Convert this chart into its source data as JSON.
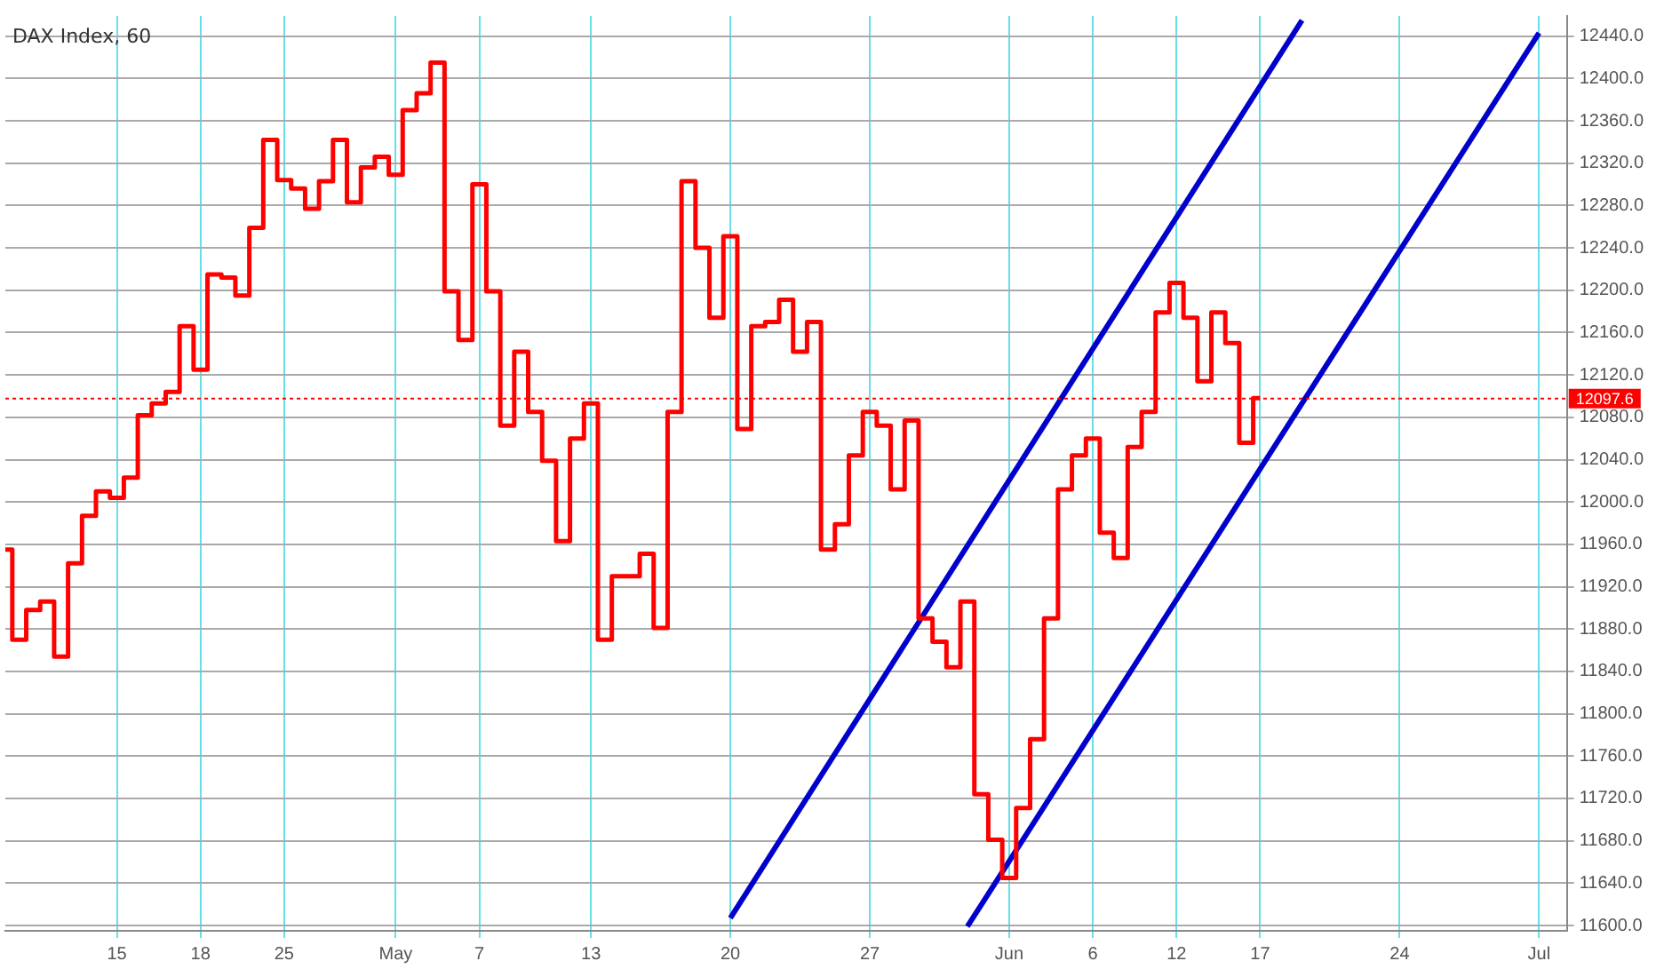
{
  "chart_data": {
    "type": "step",
    "title": "DAX Index, 60",
    "categories": [
      null,
      null,
      null,
      null,
      null,
      null,
      null,
      null,
      "15",
      null,
      null,
      null,
      null,
      null,
      "18",
      null,
      null,
      null,
      null,
      null,
      "25",
      null,
      null,
      null,
      null,
      null,
      null,
      null,
      "May",
      null,
      null,
      null,
      null,
      null,
      "7",
      null,
      null,
      null,
      null,
      null,
      null,
      null,
      "13",
      null,
      null,
      null,
      null,
      null,
      null,
      null,
      null,
      null,
      "20",
      null,
      null,
      null,
      null,
      null,
      null,
      null,
      null,
      null,
      "27",
      null,
      null,
      null,
      null,
      null,
      null,
      null,
      null,
      null,
      "Jun",
      null,
      null,
      null,
      null,
      null,
      "6",
      null,
      null,
      null,
      null,
      null,
      "12",
      null,
      null,
      null,
      null,
      null,
      "17",
      null,
      null,
      null,
      null,
      null,
      null,
      null,
      null,
      null,
      "24",
      null,
      null,
      null,
      null,
      null,
      null,
      null,
      null,
      null,
      "Jul",
      null,
      null
    ],
    "ylim": [
      11595,
      12459
    ],
    "yticks": [
      {
        "value": 11600,
        "label": "11600.0"
      },
      {
        "value": 11640,
        "label": "11640.0"
      },
      {
        "value": 11680,
        "label": "11680.0"
      },
      {
        "value": 11720,
        "label": "11720.0"
      },
      {
        "value": 11760,
        "label": "11760.0"
      },
      {
        "value": 11800,
        "label": "11800.0"
      },
      {
        "value": 11840,
        "label": "11840.0"
      },
      {
        "value": 11880,
        "label": "11880.0"
      },
      {
        "value": 11920,
        "label": "11920.0"
      },
      {
        "value": 11960,
        "label": "11960.0"
      },
      {
        "value": 12000,
        "label": "12000.0"
      },
      {
        "value": 12040,
        "label": "12040.0"
      },
      {
        "value": 12080,
        "label": "12080.0"
      },
      {
        "value": 12120,
        "label": "12120.0"
      },
      {
        "value": 12160,
        "label": "12160.0"
      },
      {
        "value": 12200,
        "label": "12200.0"
      },
      {
        "value": 12240,
        "label": "12240.0"
      },
      {
        "value": 12280,
        "label": "12280.0"
      },
      {
        "value": 12320,
        "label": "12320.0"
      },
      {
        "value": 12360,
        "label": "12360.0"
      },
      {
        "value": 12400,
        "label": "12400.0"
      },
      {
        "value": 12440,
        "label": "12440.0"
      }
    ],
    "grid": true,
    "legend": false,
    "ref_lines": [
      {
        "axis": "y",
        "value": 12097.6,
        "label": "12097.6",
        "color": "#ff0000",
        "line_style": "dotted"
      }
    ],
    "series": [
      {
        "color": "#ff0000",
        "values": [
          11955,
          11870,
          11898,
          11906,
          11854,
          11942,
          11987,
          12010,
          12004,
          12023,
          12082,
          12093,
          12104,
          12166,
          12125,
          12215,
          12212,
          12195,
          12259,
          12342,
          12304,
          12296,
          12277,
          12303,
          12342,
          12283,
          12316,
          12326,
          12309,
          12370,
          12386,
          12415,
          12199,
          12153,
          12300,
          12199,
          12072,
          12142,
          12085,
          12039,
          11963,
          12060,
          12093,
          11870,
          11930,
          11930,
          11951,
          11881,
          12085,
          12303,
          12240,
          12174,
          12251,
          12069,
          12166,
          12170,
          12191,
          12142,
          12170,
          11955,
          11979,
          12044,
          12085,
          12072,
          12012,
          12077,
          11890,
          11868,
          11844,
          11906,
          11724,
          11681,
          11645,
          11711,
          11776,
          11890,
          12012,
          12044,
          12060,
          11971,
          11947,
          12052,
          12085,
          12179,
          12207,
          12174,
          12114,
          12179,
          12150,
          12056,
          12098,
          null,
          null,
          null,
          null,
          null,
          null,
          null,
          null,
          null,
          null,
          null,
          null,
          null,
          null,
          null,
          null,
          null,
          null,
          null,
          null,
          null,
          null
        ]
      },
      {
        "type": "line",
        "color": "#0000cc",
        "values": [
          null,
          null,
          null,
          null,
          null,
          null,
          null,
          null,
          null,
          null,
          null,
          null,
          null,
          null,
          null,
          null,
          null,
          null,
          null,
          null,
          null,
          null,
          null,
          null,
          null,
          null,
          null,
          null,
          null,
          null,
          null,
          null,
          null,
          null,
          null,
          null,
          null,
          null,
          null,
          null,
          null,
          null,
          null,
          null,
          null,
          null,
          null,
          null,
          null,
          null,
          null,
          null,
          11607,
          null,
          null,
          null,
          null,
          null,
          null,
          null,
          null,
          null,
          null,
          null,
          null,
          null,
          null,
          null,
          null,
          null,
          null,
          null,
          null,
          null,
          null,
          null,
          null,
          null,
          null,
          null,
          null,
          null,
          null,
          null,
          null,
          null,
          null,
          null,
          null,
          null,
          null,
          null,
          null,
          12455,
          null,
          null,
          null,
          null,
          null,
          null,
          null,
          null,
          null,
          null,
          null,
          null,
          null,
          null,
          null,
          null,
          null,
          null,
          null
        ]
      },
      {
        "type": "line",
        "color": "#0000cc",
        "values": [
          null,
          null,
          null,
          null,
          null,
          null,
          null,
          null,
          null,
          null,
          null,
          null,
          null,
          null,
          null,
          null,
          null,
          null,
          null,
          null,
          null,
          null,
          null,
          null,
          null,
          null,
          null,
          null,
          null,
          null,
          null,
          null,
          null,
          null,
          null,
          null,
          null,
          null,
          null,
          null,
          null,
          null,
          null,
          null,
          null,
          null,
          null,
          null,
          null,
          null,
          null,
          null,
          null,
          null,
          null,
          null,
          null,
          null,
          null,
          null,
          null,
          null,
          null,
          null,
          null,
          null,
          null,
          null,
          null,
          11599,
          null,
          null,
          null,
          null,
          null,
          null,
          null,
          null,
          null,
          null,
          null,
          null,
          null,
          null,
          null,
          null,
          null,
          null,
          null,
          null,
          null,
          null,
          null,
          null,
          null,
          null,
          null,
          null,
          null,
          null,
          null,
          null,
          null,
          null,
          null,
          null,
          null,
          null,
          null,
          null,
          12443,
          null,
          null
        ]
      }
    ]
  }
}
